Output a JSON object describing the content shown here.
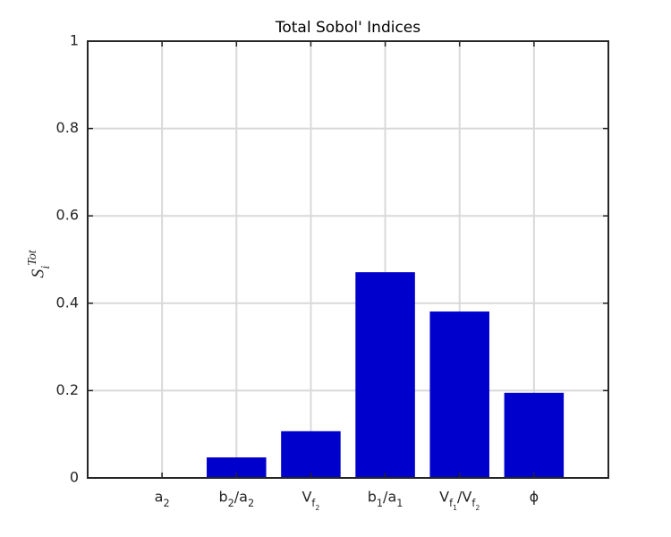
{
  "chart_data": {
    "type": "bar",
    "title": "Total Sobol' Indices",
    "y_label": "S_i^{Tot}",
    "categories": [
      "a_2",
      "b_2/a_2",
      "V_{f_2}",
      "b_1/a_1",
      "V_{f_1}/V_{f_2}",
      "ϕ"
    ],
    "values": [
      0.001,
      0.047,
      0.107,
      0.471,
      0.381,
      0.195
    ],
    "color": "#0000cd",
    "ylim": [
      0,
      1
    ],
    "yticks": [
      0,
      0.2,
      0.4,
      0.6,
      0.8,
      1
    ],
    "grid": true
  }
}
